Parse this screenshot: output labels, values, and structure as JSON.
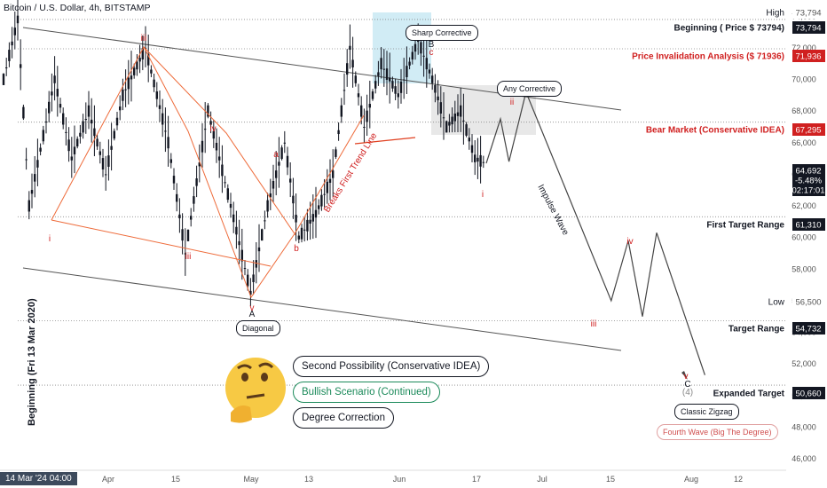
{
  "header": {
    "title": "Bitcoin / U.S. Dollar, 4h, BITSTAMP"
  },
  "sidebar_label": "Beginning (Fri 13 Mar 2020)",
  "time_stamp": "14 Mar '24  04:00",
  "colors": {
    "candle": "#131722",
    "wave": "#ee6b3a",
    "red_text": "#d02020",
    "blue_box": "#b3e0ef",
    "gray_box": "#d8d8d8"
  },
  "chart_data": {
    "type": "line",
    "symbol": "BTC/USD",
    "timeframe": "4h",
    "y_axis": {
      "ticks": [
        "46,000",
        "48,000",
        "50,000",
        "52,000",
        "54,000",
        "56,000",
        "58,000",
        "60,000",
        "62,000",
        "64,000",
        "66,000",
        "68,000",
        "70,000",
        "72,000",
        "74,000"
      ],
      "range": [
        45500,
        74800
      ]
    },
    "x_axis": {
      "ticks": [
        "Apr",
        "15",
        "May",
        "13",
        "Jun",
        "17",
        "Jul",
        "15",
        "Aug",
        "12"
      ]
    },
    "price_path": [
      [
        0,
        70000
      ],
      [
        5,
        73794
      ],
      [
        9,
        62000
      ],
      [
        18,
        70000
      ],
      [
        24,
        65000
      ],
      [
        30,
        68000
      ],
      [
        36,
        64000
      ],
      [
        42,
        69000
      ],
      [
        50,
        72000
      ],
      [
        58,
        66000
      ],
      [
        64,
        59000
      ],
      [
        72,
        68000
      ],
      [
        80,
        62000
      ],
      [
        87,
        56500
      ],
      [
        93,
        62000
      ],
      [
        99,
        66000
      ],
      [
        104,
        60000
      ],
      [
        110,
        61500
      ],
      [
        116,
        64000
      ],
      [
        122,
        72000
      ],
      [
        127,
        67000
      ],
      [
        133,
        71000
      ],
      [
        139,
        69000
      ],
      [
        146,
        72500
      ],
      [
        151,
        70000
      ],
      [
        156,
        67000
      ],
      [
        161,
        68000
      ],
      [
        166,
        65000
      ],
      [
        170,
        64692
      ]
    ],
    "projection_path": [
      [
        170,
        64692
      ],
      [
        175,
        67500
      ],
      [
        178,
        64800
      ],
      [
        184,
        69200
      ],
      [
        214,
        56000
      ],
      [
        220,
        59800
      ],
      [
        225,
        55000
      ],
      [
        230,
        60300
      ],
      [
        247,
        51300
      ]
    ],
    "right_labels": [
      {
        "label": "High",
        "value": "73,794"
      },
      {
        "label": "Beginning ( Price $ 73794)",
        "value": "73,794"
      },
      {
        "label": "Price Invalidation Analysis ($ 71936)",
        "value": "71,936"
      },
      {
        "label": "Bear Market (Conservative IDEA)",
        "value": "67,295"
      },
      {
        "label": "",
        "value": "64,692"
      },
      {
        "label": "",
        "value": "-5.48%"
      },
      {
        "label": "",
        "value": "02:17:01"
      },
      {
        "label": "First Target Range",
        "value": "61,310"
      },
      {
        "label": "Low",
        "value": "56,500"
      },
      {
        "label": "Target Range",
        "value": "54,732"
      },
      {
        "label": "Expanded Target",
        "value": "50,660"
      }
    ],
    "wave_labels": [
      "i",
      "ii",
      "iii",
      "iv",
      "v",
      "a",
      "b",
      "c",
      "A",
      "B",
      "C",
      "(4)",
      "iii",
      "iv",
      "v",
      "i",
      "ii"
    ],
    "annotations": [
      "Sharp Corrective",
      "Any Corrective",
      "Diagonal",
      "Breaks First Trend Line",
      "Impulse Wave",
      "Classic Zigzag",
      "Fourth Wave (Big The Degree)"
    ]
  },
  "bubbles": [
    "Second Possibility (Conservative IDEA)",
    "Bullish Scenario (Continued)",
    "Degree Correction"
  ]
}
